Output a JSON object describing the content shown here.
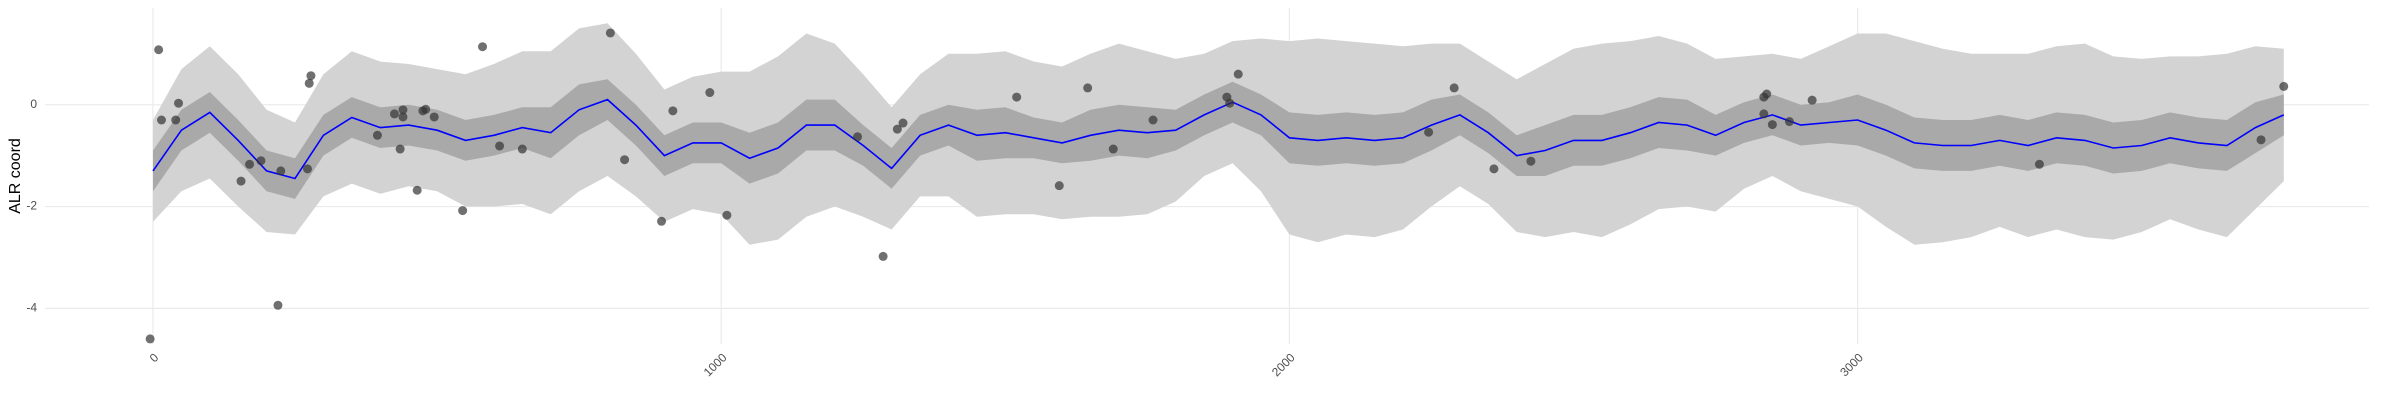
{
  "chart_data": {
    "type": "line",
    "y_label": "ALR coord",
    "xlim": [
      -190,
      3900
    ],
    "ylim": [
      -4.7,
      1.9
    ],
    "xticks": [
      0,
      1000,
      2000,
      3000
    ],
    "yticks": [
      -4,
      -2,
      0
    ],
    "grid": true,
    "outer_color": "#d3d3d3",
    "inner_color": "#a9a9a9",
    "line_color": "#0000ff",
    "point_color": "#333333",
    "x": [
      0,
      50,
      100,
      150,
      200,
      250,
      300,
      350,
      400,
      450,
      500,
      550,
      600,
      650,
      700,
      750,
      800,
      850,
      900,
      950,
      1000,
      1050,
      1100,
      1150,
      1200,
      1250,
      1300,
      1350,
      1400,
      1450,
      1500,
      1550,
      1600,
      1650,
      1700,
      1750,
      1800,
      1850,
      1900,
      1950,
      2000,
      2050,
      2100,
      2150,
      2200,
      2250,
      2300,
      2350,
      2400,
      2450,
      2500,
      2550,
      2600,
      2650,
      2700,
      2750,
      2800,
      2850,
      2900,
      2950,
      3000,
      3050,
      3100,
      3150,
      3200,
      3250,
      3300,
      3350,
      3400,
      3450,
      3500,
      3550,
      3600,
      3650,
      3700,
      3750
    ],
    "mean": [
      -1.3,
      -0.5,
      -0.15,
      -0.7,
      -1.3,
      -1.45,
      -0.6,
      -0.25,
      -0.45,
      -0.4,
      -0.5,
      -0.7,
      -0.6,
      -0.45,
      -0.55,
      -0.1,
      0.1,
      -0.4,
      -1.0,
      -0.75,
      -0.75,
      -1.05,
      -0.85,
      -0.4,
      -0.4,
      -0.8,
      -1.25,
      -0.6,
      -0.4,
      -0.6,
      -0.55,
      -0.65,
      -0.75,
      -0.6,
      -0.5,
      -0.55,
      -0.5,
      -0.2,
      0.05,
      -0.2,
      -0.65,
      -0.7,
      -0.65,
      -0.7,
      -0.65,
      -0.4,
      -0.2,
      -0.55,
      -1.0,
      -0.9,
      -0.7,
      -0.7,
      -0.55,
      -0.35,
      -0.4,
      -0.6,
      -0.35,
      -0.2,
      -0.4,
      -0.35,
      -0.3,
      -0.5,
      -0.75,
      -0.8,
      -0.8,
      -0.7,
      -0.8,
      -0.65,
      -0.7,
      -0.85,
      -0.8,
      -0.65,
      -0.75,
      -0.8,
      -0.45,
      -0.2
    ],
    "outer_upper": [
      -0.3,
      0.7,
      1.15,
      0.6,
      -0.1,
      -0.35,
      0.6,
      1.05,
      0.85,
      0.8,
      0.7,
      0.6,
      0.8,
      1.05,
      1.05,
      1.5,
      1.6,
      1.0,
      0.3,
      0.55,
      0.65,
      0.65,
      0.95,
      1.4,
      1.2,
      0.6,
      -0.05,
      0.6,
      1.0,
      1.0,
      1.05,
      0.85,
      0.75,
      1.0,
      1.2,
      1.05,
      0.9,
      1.0,
      1.25,
      1.3,
      1.25,
      1.3,
      1.25,
      1.2,
      1.15,
      1.2,
      1.2,
      0.85,
      0.5,
      0.8,
      1.1,
      1.2,
      1.25,
      1.35,
      1.2,
      0.9,
      0.95,
      1.0,
      0.9,
      1.15,
      1.4,
      1.4,
      1.25,
      1.1,
      1.0,
      1.0,
      1.0,
      1.15,
      1.2,
      0.95,
      0.9,
      0.95,
      0.95,
      1.0,
      1.15,
      1.1
    ],
    "outer_lower": [
      -2.3,
      -1.7,
      -1.45,
      -2.0,
      -2.5,
      -2.55,
      -1.8,
      -1.55,
      -1.75,
      -1.6,
      -1.7,
      -2.0,
      -2.0,
      -1.95,
      -2.15,
      -1.7,
      -1.4,
      -1.8,
      -2.3,
      -2.05,
      -2.15,
      -2.75,
      -2.65,
      -2.2,
      -2.0,
      -2.2,
      -2.45,
      -1.8,
      -1.8,
      -2.2,
      -2.15,
      -2.15,
      -2.25,
      -2.2,
      -2.2,
      -2.15,
      -1.9,
      -1.4,
      -1.15,
      -1.7,
      -2.55,
      -2.7,
      -2.55,
      -2.6,
      -2.45,
      -2.0,
      -1.6,
      -1.95,
      -2.5,
      -2.6,
      -2.5,
      -2.6,
      -2.35,
      -2.05,
      -2.0,
      -2.1,
      -1.65,
      -1.4,
      -1.7,
      -1.85,
      -2.0,
      -2.4,
      -2.75,
      -2.7,
      -2.6,
      -2.4,
      -2.6,
      -2.45,
      -2.6,
      -2.65,
      -2.5,
      -2.25,
      -2.45,
      -2.6,
      -2.05,
      -1.5
    ],
    "inner_upper": [
      -0.9,
      -0.1,
      0.25,
      -0.3,
      -0.9,
      -1.05,
      -0.2,
      0.15,
      -0.05,
      0.0,
      -0.1,
      -0.3,
      -0.2,
      -0.05,
      -0.05,
      0.4,
      0.5,
      0.0,
      -0.6,
      -0.35,
      -0.35,
      -0.55,
      -0.35,
      0.1,
      0.1,
      -0.4,
      -0.85,
      -0.2,
      0.0,
      -0.1,
      -0.05,
      -0.25,
      -0.35,
      -0.1,
      0.0,
      -0.05,
      -0.1,
      0.2,
      0.45,
      0.2,
      -0.15,
      -0.2,
      -0.15,
      -0.2,
      -0.15,
      0.1,
      0.2,
      -0.15,
      -0.6,
      -0.4,
      -0.2,
      -0.2,
      -0.05,
      0.15,
      0.1,
      -0.2,
      0.05,
      0.2,
      0.0,
      0.05,
      0.2,
      0.0,
      -0.25,
      -0.3,
      -0.3,
      -0.2,
      -0.3,
      -0.15,
      -0.2,
      -0.35,
      -0.3,
      -0.15,
      -0.25,
      -0.3,
      0.05,
      0.2
    ],
    "inner_lower": [
      -1.7,
      -0.9,
      -0.55,
      -1.1,
      -1.7,
      -1.85,
      -1.0,
      -0.65,
      -0.85,
      -0.8,
      -0.9,
      -1.1,
      -1.0,
      -0.85,
      -1.05,
      -0.6,
      -0.3,
      -0.8,
      -1.4,
      -1.15,
      -1.15,
      -1.55,
      -1.35,
      -0.9,
      -0.9,
      -1.2,
      -1.65,
      -1.0,
      -0.8,
      -1.1,
      -1.05,
      -1.05,
      -1.15,
      -1.1,
      -1.0,
      -1.05,
      -0.9,
      -0.6,
      -0.35,
      -0.6,
      -1.15,
      -1.2,
      -1.15,
      -1.2,
      -1.15,
      -0.9,
      -0.6,
      -0.95,
      -1.4,
      -1.4,
      -1.2,
      -1.2,
      -1.05,
      -0.85,
      -0.9,
      -1.0,
      -0.75,
      -0.6,
      -0.8,
      -0.75,
      -0.8,
      -1.0,
      -1.25,
      -1.3,
      -1.3,
      -1.2,
      -1.3,
      -1.15,
      -1.2,
      -1.35,
      -1.3,
      -1.15,
      -1.25,
      -1.3,
      -0.95,
      -0.6
    ],
    "points": {
      "x": [
        -5,
        10,
        15,
        40,
        45,
        155,
        170,
        190,
        220,
        225,
        275,
        278,
        272,
        395,
        425,
        435,
        440,
        440,
        465,
        475,
        480,
        495,
        545,
        580,
        610,
        650,
        805,
        830,
        895,
        915,
        980,
        1010,
        1240,
        1285,
        1310,
        1320,
        1520,
        1595,
        1645,
        1690,
        1760,
        1890,
        1895,
        1910,
        2245,
        2290,
        2360,
        2425,
        2835,
        2840,
        2835,
        2850,
        2880,
        2920,
        3320,
        3710,
        3750
      ],
      "y": [
        -4.6,
        1.08,
        -0.3,
        -0.3,
        0.03,
        -1.5,
        -1.17,
        -1.1,
        -3.94,
        -1.3,
        0.42,
        0.57,
        -1.26,
        -0.6,
        -0.18,
        -0.87,
        -0.1,
        -0.24,
        -1.68,
        -0.12,
        -0.09,
        -0.24,
        -2.08,
        1.14,
        -0.81,
        -0.87,
        1.41,
        -1.08,
        -2.29,
        -0.12,
        0.24,
        -2.17,
        -0.63,
        -2.98,
        -0.48,
        -0.36,
        0.15,
        -1.59,
        0.33,
        -0.87,
        -0.3,
        0.15,
        0.03,
        0.6,
        -0.54,
        0.33,
        -1.26,
        -1.11,
        0.15,
        0.21,
        -0.18,
        -0.39,
        -0.33,
        0.09,
        -1.17,
        -0.69,
        0.36
      ]
    }
  }
}
